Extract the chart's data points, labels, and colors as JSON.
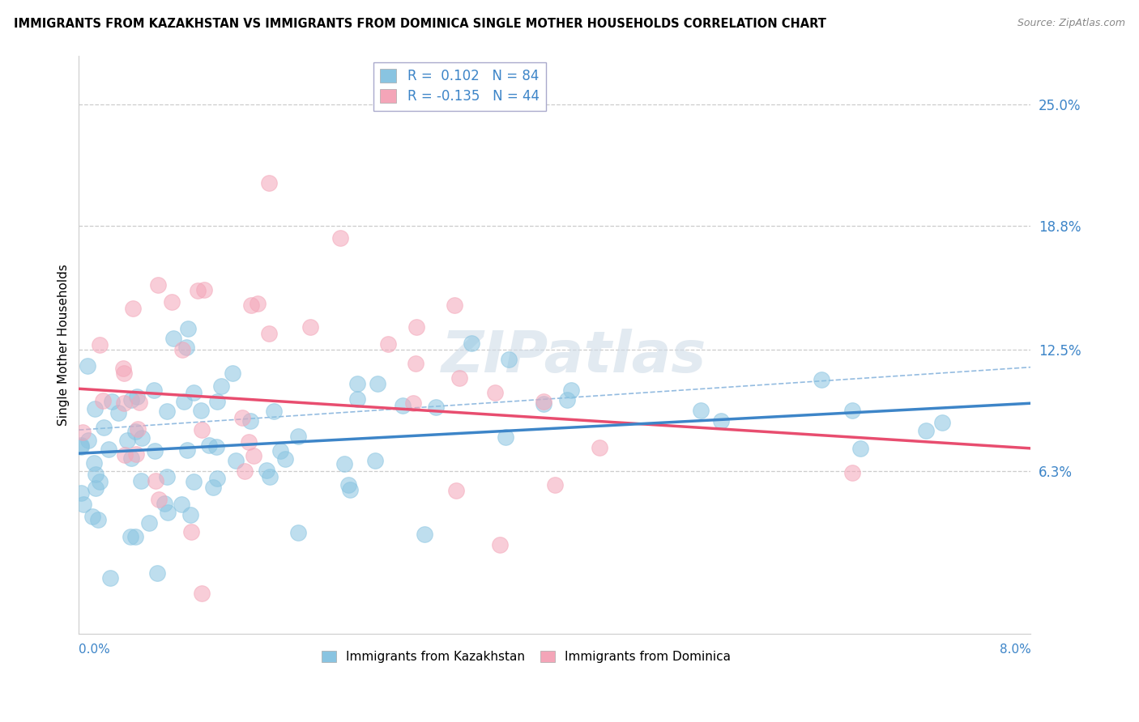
{
  "title": "IMMIGRANTS FROM KAZAKHSTAN VS IMMIGRANTS FROM DOMINICA SINGLE MOTHER HOUSEHOLDS CORRELATION CHART",
  "source": "Source: ZipAtlas.com",
  "ylabel": "Single Mother Households",
  "ytick_vals": [
    0.063,
    0.125,
    0.188,
    0.25
  ],
  "ytick_labels": [
    "6.3%",
    "12.5%",
    "18.8%",
    "25.0%"
  ],
  "xlim": [
    0.0,
    0.08
  ],
  "ylim": [
    -0.02,
    0.275
  ],
  "kazakhstan_color": "#89c4e1",
  "dominica_color": "#f4a5b8",
  "kazakhstan_line_color": "#3d85c8",
  "dominica_line_color": "#e84d6f",
  "legend_R_kaz": "R =  0.102",
  "legend_N_kaz": "N = 84",
  "legend_R_dom": "R = -0.135",
  "legend_N_dom": "N = 44",
  "kaz_intercept": 0.072,
  "kaz_slope": 0.32,
  "dom_intercept": 0.105,
  "dom_slope": -0.38,
  "watermark": "ZIPatlas"
}
